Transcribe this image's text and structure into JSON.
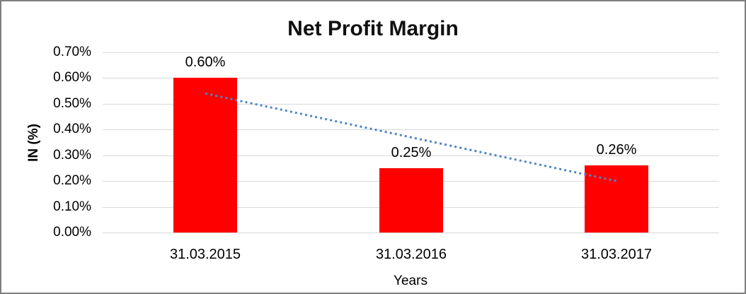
{
  "chart_data": {
    "type": "bar",
    "title": "Net Profit Margin",
    "xlabel": "Years",
    "ylabel": "IN (%)",
    "categories": [
      "31.03.2015",
      "31.03.2016",
      "31.03.2017"
    ],
    "values": [
      0.6,
      0.25,
      0.26
    ],
    "data_labels": [
      "0.60%",
      "0.25%",
      "0.26%"
    ],
    "ylim": [
      0,
      0.7
    ],
    "ytick_step": 0.1,
    "ytick_labels": [
      "0.00%",
      "0.10%",
      "0.20%",
      "0.30%",
      "0.40%",
      "0.50%",
      "0.60%",
      "0.70%"
    ],
    "grid": true,
    "legend": "none",
    "bar_color": "#FF0000",
    "gridline_color": "#d9d9d9",
    "trendline": {
      "type": "linear",
      "style": "dotted",
      "color": "#4F86C6",
      "start_value": 0.54,
      "end_value": 0.2
    }
  }
}
